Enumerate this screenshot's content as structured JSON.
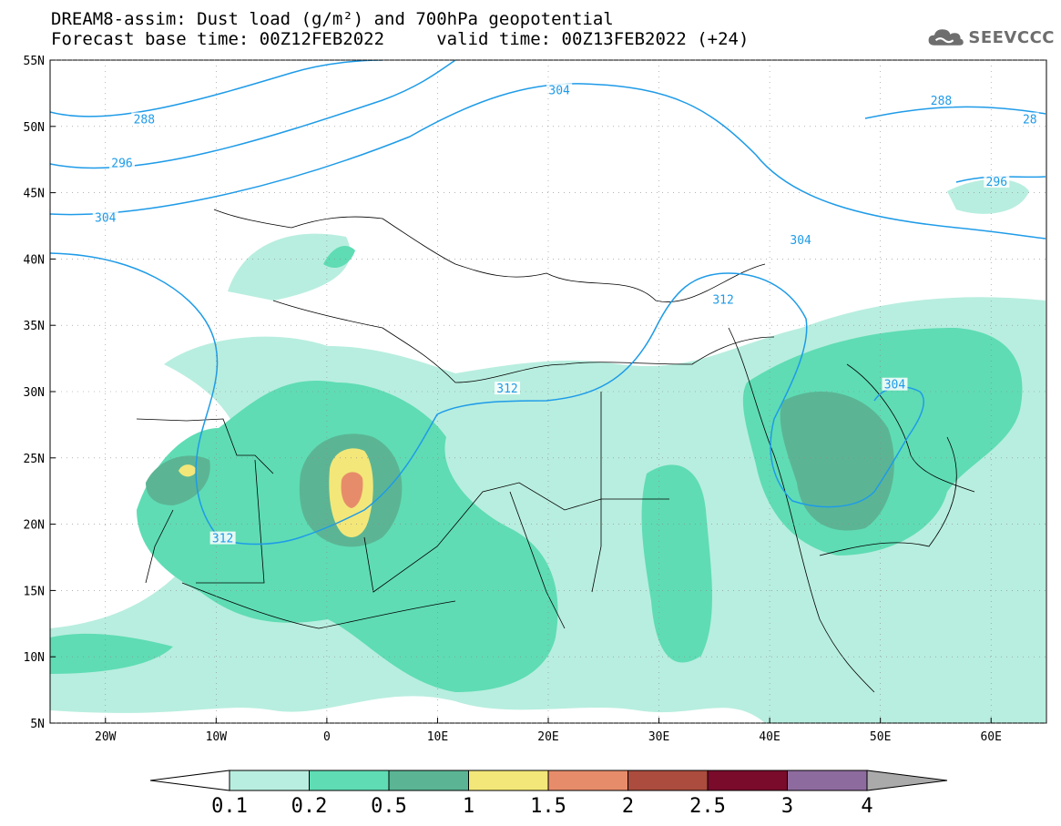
{
  "header": {
    "title_line1": "DREAM8-assim: Dust load (g/m²) and 700hPa geopotential",
    "title_line2": "Forecast base time: 00Z12FEB2022     valid time: 00Z13FEB2022 (+24)",
    "logo_text": "SEEVCCC"
  },
  "map": {
    "lon_ticks": [
      "20W",
      "10W",
      "0",
      "10E",
      "20E",
      "30E",
      "40E",
      "50E",
      "60E"
    ],
    "lat_ticks": [
      "55N",
      "50N",
      "45N",
      "40N",
      "35N",
      "30N",
      "25N",
      "20N",
      "15N",
      "10N",
      "5N"
    ],
    "lon_range": [
      -25,
      65
    ],
    "lat_range": [
      5,
      55
    ],
    "contour_color": "#1e9be8",
    "contour_labels": [
      {
        "text": "288",
        "lon": -16.5,
        "lat": 50.5
      },
      {
        "text": "296",
        "lon": -18.5,
        "lat": 47.2
      },
      {
        "text": "304",
        "lon": -20,
        "lat": 43.1
      },
      {
        "text": "304",
        "lon": 21,
        "lat": 52.7
      },
      {
        "text": "288",
        "lon": 55.5,
        "lat": 51.9
      },
      {
        "text": "28",
        "lon": 63.5,
        "lat": 50.5
      },
      {
        "text": "296",
        "lon": 60.5,
        "lat": 45.8
      },
      {
        "text": "304",
        "lon": 42.8,
        "lat": 41.4
      },
      {
        "text": "312",
        "lon": 35.8,
        "lat": 36.9
      },
      {
        "text": "312",
        "lon": 16.3,
        "lat": 30.2
      },
      {
        "text": "304",
        "lon": 51.3,
        "lat": 30.5
      },
      {
        "text": "312",
        "lon": -9.4,
        "lat": 18.9
      }
    ]
  },
  "colorbar": {
    "labels": [
      "0.1",
      "0.2",
      "0.5",
      "1",
      "1.5",
      "2",
      "2.5",
      "3",
      "4"
    ],
    "colors": [
      "#b8eedf",
      "#5fdcb4",
      "#5bb594",
      "#f3e779",
      "#e78c6a",
      "#ab4c3e",
      "#7a0b2b",
      "#8e6b9e"
    ],
    "min_arrow_color": "#ffffff",
    "max_arrow_color": "#aaaaaa"
  },
  "dust": {
    "levels": [
      "0.1",
      "0.2",
      "0.5",
      "1",
      "1.5"
    ],
    "colors": [
      "#b8eedf",
      "#5fdcb4",
      "#5bb594",
      "#f3e779",
      "#e78c6a"
    ]
  }
}
